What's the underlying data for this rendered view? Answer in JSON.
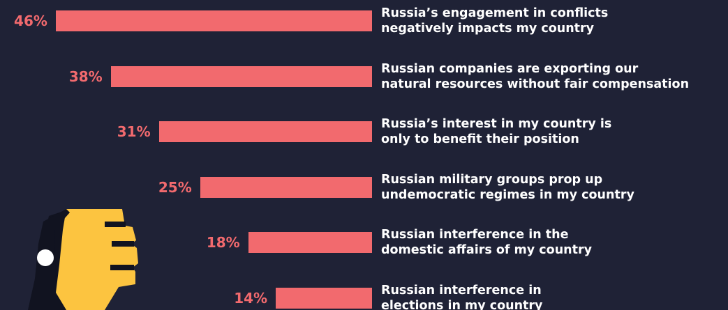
{
  "chart_data": {
    "type": "bar",
    "orientation": "horizontal",
    "color": "#f26a6e",
    "categories": [
      [
        "Russia’s engagement in conflicts",
        "negatively impacts my country"
      ],
      [
        "Russian companies are exporting our",
        "natural resources without fair compensation"
      ],
      [
        "Russia’s interest in my country is",
        "only to benefit their position"
      ],
      [
        "Russian military groups prop up",
        "undemocratic regimes in my country"
      ],
      [
        "Russian interference in the",
        "domestic affairs of my country"
      ],
      [
        "Russian interference in",
        "elections in my country"
      ]
    ],
    "values": [
      46,
      38,
      31,
      25,
      18,
      14
    ],
    "value_labels": [
      "46%",
      "38%",
      "31%",
      "25%",
      "18%",
      "14%"
    ]
  }
}
